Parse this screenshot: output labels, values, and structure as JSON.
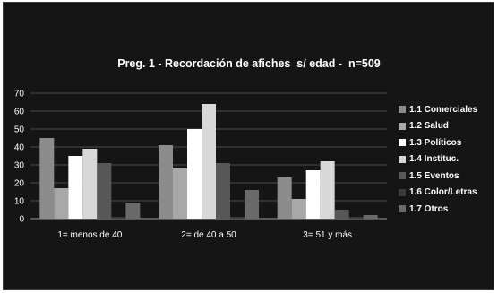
{
  "chart_data": {
    "type": "bar",
    "title": "Preg. 1 - Recordación de afiches  s/ edad -  n=509",
    "xlabel": "",
    "ylabel": "",
    "ylim": [
      0,
      70
    ],
    "yticks": [
      0,
      10,
      20,
      30,
      40,
      50,
      60,
      70
    ],
    "grid": true,
    "legend_position": "right",
    "categories": [
      "1= menos de 40",
      "2= de 40 a 50",
      "3= 51 y más"
    ],
    "series": [
      {
        "name": "1.1  Comerciales",
        "color": "#8c8c8c",
        "values": [
          45,
          41,
          23
        ]
      },
      {
        "name": "1.2  Salud",
        "color": "#a8a8a8",
        "values": [
          17,
          28,
          11
        ]
      },
      {
        "name": "1.3  Políticos",
        "color": "#ffffff",
        "values": [
          35,
          50,
          27
        ]
      },
      {
        "name": "1.4  Instituc.",
        "color": "#d8d8d8",
        "values": [
          39,
          64,
          32
        ]
      },
      {
        "name": "1.5  Eventos",
        "color": "#585858",
        "values": [
          31,
          31,
          5
        ]
      },
      {
        "name": "1.6  Color/Letras",
        "color": "#3a3a3a",
        "values": [
          1,
          1,
          1
        ]
      },
      {
        "name": "1.7  Otros",
        "color": "#6a6a6a",
        "values": [
          9,
          16,
          2
        ]
      }
    ]
  }
}
